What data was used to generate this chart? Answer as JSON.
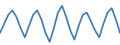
{
  "values": [
    40,
    60,
    80,
    90,
    75,
    50,
    30,
    55,
    80,
    90,
    70,
    40,
    20,
    50,
    85,
    100,
    75,
    45,
    25,
    55,
    80,
    85,
    65,
    45,
    30,
    60,
    85,
    95,
    70,
    40
  ],
  "line_color": "#3a7abf",
  "background_color": "#ffffff",
  "linewidth": 1.2
}
